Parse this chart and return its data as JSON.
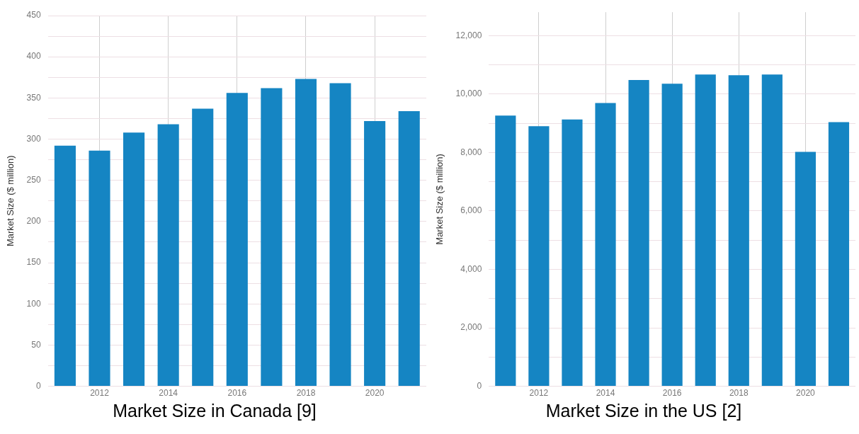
{
  "chart_data": [
    {
      "type": "bar",
      "title": "Market Size in Canada [9]",
      "ylabel": "Market Size ($ million)",
      "categories": [
        null,
        "2012",
        null,
        "2014",
        null,
        "2016",
        null,
        "2018",
        null,
        "2020",
        null
      ],
      "values": [
        292,
        286,
        308,
        318,
        337,
        356,
        362,
        373,
        368,
        322,
        334
      ],
      "color": "#1585c3",
      "ylim": [
        0,
        450
      ],
      "yticks": [
        0,
        {
          "value": 25,
          "label": null
        },
        50,
        {
          "value": 75,
          "label": null
        },
        100,
        {
          "value": 125,
          "label": null
        },
        150,
        {
          "value": 175,
          "label": null
        },
        200,
        {
          "value": 225,
          "label": null
        },
        250,
        {
          "value": 275,
          "label": null
        },
        300,
        {
          "value": 325,
          "label": null
        },
        350,
        {
          "value": 375,
          "label": null
        },
        400,
        {
          "value": 425,
          "label": null
        },
        450
      ],
      "grid": true
    },
    {
      "type": "bar",
      "title": "Market Size in the US [2]",
      "ylabel": "Market Size ($ million)",
      "categories": [
        null,
        "2012",
        null,
        "2014",
        null,
        "2016",
        null,
        "2018",
        null,
        "2020",
        null
      ],
      "values": [
        9260,
        8900,
        9130,
        9690,
        10480,
        10350,
        10670,
        10640,
        10670,
        8020,
        9040
      ],
      "color": "#1585c3",
      "ylim": [
        0,
        12800
      ],
      "yticks": [
        0,
        {
          "value": 1000,
          "label": null
        },
        {
          "value": 2000,
          "label": "2,000"
        },
        {
          "value": 3000,
          "label": null
        },
        {
          "value": 4000,
          "label": "4,000"
        },
        {
          "value": 5000,
          "label": null
        },
        {
          "value": 6000,
          "label": "6,000"
        },
        {
          "value": 7000,
          "label": null
        },
        {
          "value": 8000,
          "label": "8,000"
        },
        {
          "value": 9000,
          "label": null
        },
        {
          "value": 10000,
          "label": "10,000"
        },
        {
          "value": 11000,
          "label": null
        },
        {
          "value": 12000,
          "label": "12,000"
        }
      ],
      "grid": true
    }
  ]
}
